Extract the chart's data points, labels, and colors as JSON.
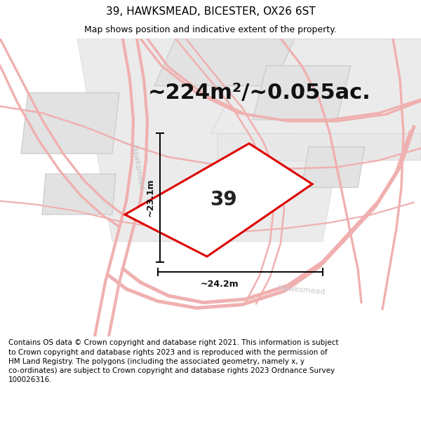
{
  "title": "39, HAWKSMEAD, BICESTER, OX26 6ST",
  "subtitle": "Map shows position and indicative extent of the property.",
  "area_text": "~224m²/~0.055ac.",
  "width_label": "~24.2m",
  "height_label": "~23.1m",
  "property_number": "39",
  "footer": "Contains OS data © Crown copyright and database right 2021. This information is subject to Crown copyright and database rights 2023 and is reproduced with the permission of HM Land Registry. The polygons (including the associated geometry, namely x, y co-ordinates) are subject to Crown copyright and database rights 2023 Ordnance Survey 100026316.",
  "bg_color": "#f5f5f5",
  "road_line_color": "#f0b0b0",
  "road_line_lw": 1.2,
  "building_color": "#e8e8e8",
  "building_edge": "#cccccc",
  "block_color": "#e0e0e0",
  "block_edge": "#c8c8c8",
  "property_fill": "#ffffff",
  "property_edge": "#dd0000",
  "property_edge_lw": 2.2,
  "dim_color": "#000000",
  "title_fontsize": 11,
  "subtitle_fontsize": 9,
  "area_fontsize": 22,
  "footer_fontsize": 7.5,
  "road_label_color": "#c0c0c0",
  "hawksmead_label_color": "#c8c8c8",
  "number_fontsize": 20
}
